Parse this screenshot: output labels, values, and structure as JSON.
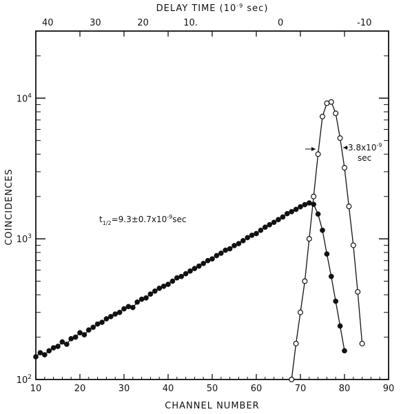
{
  "chart_data": {
    "type": "scatter",
    "title": "",
    "xlabel": "CHANNEL NUMBER",
    "ylabel": "COINCIDENCES",
    "top_axis_label": "DELAY TIME",
    "top_axis_unit_base": "(10",
    "top_axis_unit_exp": "-9",
    "top_axis_unit_tail": " sec)",
    "xlim": [
      10,
      90
    ],
    "ylim": [
      100,
      30000
    ],
    "yscale": "log",
    "grid": false,
    "x_ticks": [
      "10",
      "20",
      "30",
      "40",
      "50",
      "60",
      "70",
      "80",
      "90"
    ],
    "y_ticks": [
      {
        "base": "10",
        "exp": "2"
      },
      {
        "base": "10",
        "exp": "3"
      },
      {
        "base": "10",
        "exp": "4"
      }
    ],
    "top_ticks": [
      {
        "label": "40",
        "x": 12.7
      },
      {
        "label": "30",
        "x": 23.5
      },
      {
        "label": "20",
        "x": 34.3
      },
      {
        "label": "10.",
        "x": 45.1
      },
      {
        "label": "0",
        "x": 65.5
      },
      {
        "label": "-10",
        "x": 84.5
      }
    ],
    "annotations": {
      "half_life_prefix": "t",
      "half_life_sub": "1/2",
      "half_life_body": "=9.3±0.7x10",
      "half_life_exp": "-9",
      "half_life_tail": "sec",
      "fwhm_main": "3.8x10",
      "fwhm_exp": "-9",
      "fwhm_tail": "sec"
    },
    "series": [
      {
        "marker": "filled-circle",
        "x": [
          10,
          11,
          12,
          13,
          14,
          15,
          16,
          17,
          18,
          19,
          20,
          21,
          22,
          23,
          24,
          25,
          26,
          27,
          28,
          29,
          30,
          31,
          32,
          33,
          34,
          35,
          36,
          37,
          38,
          39,
          40,
          41,
          42,
          43,
          44,
          45,
          46,
          47,
          48,
          49,
          50,
          51,
          52,
          53,
          54,
          55,
          56,
          57,
          58,
          59,
          60,
          61,
          62,
          63,
          64,
          65,
          66,
          67,
          68,
          69,
          70,
          71,
          72,
          73,
          74,
          75,
          76,
          77,
          78,
          79,
          80
        ],
        "y": [
          145,
          155,
          150,
          160,
          168,
          172,
          185,
          178,
          195,
          200,
          215,
          208,
          225,
          235,
          248,
          255,
          270,
          280,
          292,
          300,
          318,
          330,
          325,
          355,
          372,
          380,
          405,
          425,
          445,
          460,
          475,
          500,
          528,
          540,
          565,
          590,
          615,
          640,
          668,
          700,
          720,
          760,
          790,
          830,
          850,
          895,
          925,
          970,
          1020,
          1060,
          1090,
          1150,
          1210,
          1260,
          1310,
          1370,
          1430,
          1510,
          1560,
          1620,
          1690,
          1750,
          1800,
          1760,
          1500,
          1150,
          780,
          540,
          360,
          240,
          160
        ]
      },
      {
        "marker": "open-circle",
        "x": [
          68,
          69,
          70,
          71,
          72,
          73,
          74,
          75,
          76,
          77,
          78,
          79,
          80,
          81,
          82,
          83,
          84
        ],
        "y": [
          100,
          180,
          300,
          500,
          1000,
          2000,
          4000,
          7400,
          9200,
          9400,
          7800,
          5200,
          3200,
          1700,
          900,
          420,
          180
        ]
      }
    ]
  }
}
